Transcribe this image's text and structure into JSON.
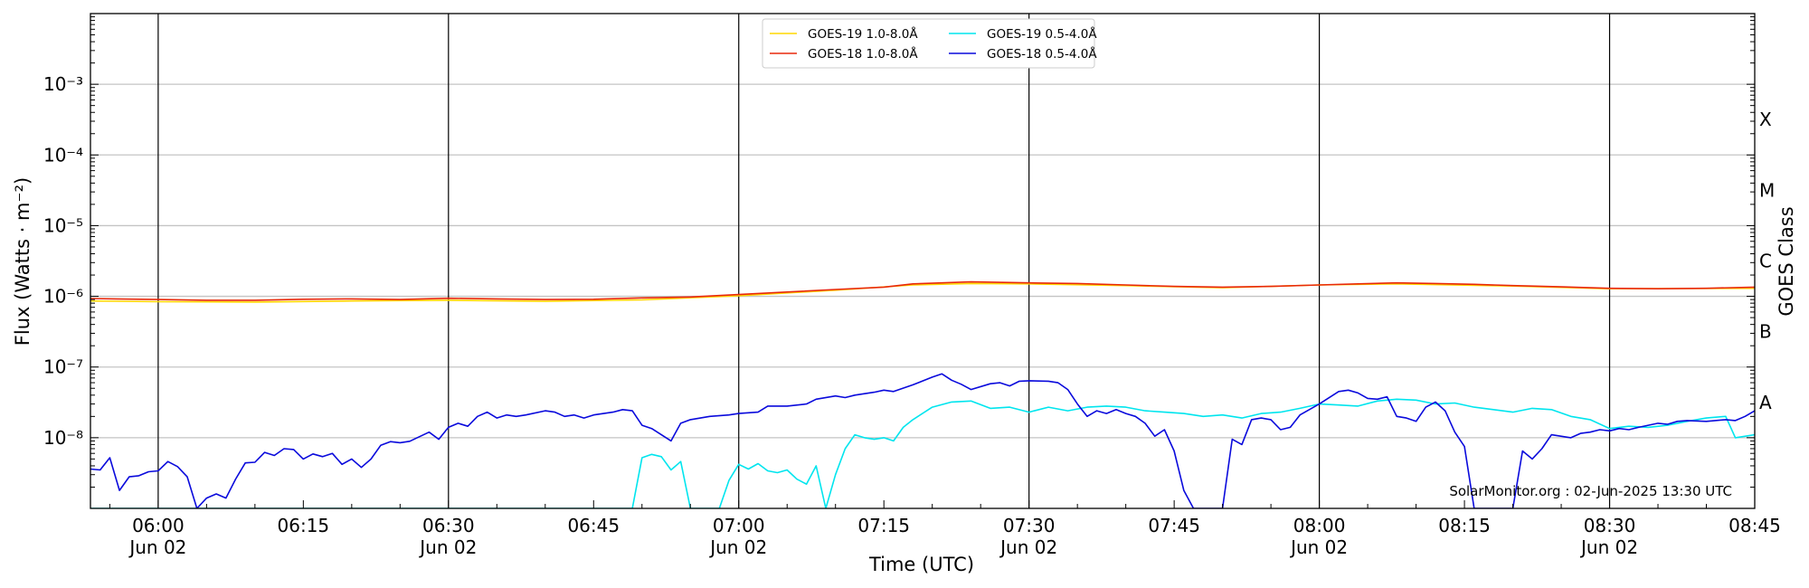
{
  "chart_data": {
    "type": "line",
    "xlabel": "Time (UTC)",
    "ylabel": "Flux (Watts · m⁻²)",
    "y2label": "GOES Class",
    "yscale": "log",
    "xlim": [
      "05:53",
      "08:45"
    ],
    "ylim": [
      1e-09,
      0.01
    ],
    "grid": "horizontal",
    "legend_position": "top-center",
    "credit": "SolarMonitor.org : 02-Jun-2025 13:30 UTC",
    "x_tick_labels": [
      "06:00\nJun 02",
      "06:15",
      "06:30\nJun 02",
      "06:45",
      "07:00\nJun 02",
      "07:15",
      "07:30\nJun 02",
      "07:45",
      "08:00\nJun 02",
      "08:15",
      "08:30\nJun 02",
      "08:45"
    ],
    "y_tick_labels": [
      "10⁻⁸",
      "10⁻⁷",
      "10⁻⁶",
      "10⁻⁵",
      "10⁻⁴",
      "10⁻³"
    ],
    "goes_classes": [
      "A",
      "B",
      "C",
      "M",
      "X"
    ],
    "series": [
      {
        "name": "GOES-19 1.0-8.0Å",
        "color": "#ffd700",
        "points": [
          [
            "05:53",
            8.6e-07
          ],
          [
            "06:00",
            8.4e-07
          ],
          [
            "06:10",
            8.3e-07
          ],
          [
            "06:20",
            8.6e-07
          ],
          [
            "06:30",
            8.8e-07
          ],
          [
            "06:40",
            8.5e-07
          ],
          [
            "06:50",
            8.9e-07
          ],
          [
            "07:00",
            1.02e-06
          ],
          [
            "07:10",
            1.22e-06
          ],
          [
            "07:18",
            1.45e-06
          ],
          [
            "07:24",
            1.52e-06
          ],
          [
            "07:30",
            1.5e-06
          ],
          [
            "07:40",
            1.42e-06
          ],
          [
            "07:50",
            1.32e-06
          ],
          [
            "08:00",
            1.45e-06
          ],
          [
            "08:08",
            1.5e-06
          ],
          [
            "08:20",
            1.4e-06
          ],
          [
            "08:30",
            1.28e-06
          ],
          [
            "08:45",
            1.3e-06
          ]
        ]
      },
      {
        "name": "GOES-18 1.0-8.0Å",
        "color": "#e8290b",
        "points": [
          [
            "05:53",
            9.3e-07
          ],
          [
            "06:00",
            9e-07
          ],
          [
            "06:05",
            8.8e-07
          ],
          [
            "06:10",
            8.8e-07
          ],
          [
            "06:15",
            9.1e-07
          ],
          [
            "06:20",
            9.2e-07
          ],
          [
            "06:25",
            9e-07
          ],
          [
            "06:30",
            9.4e-07
          ],
          [
            "06:35",
            9.2e-07
          ],
          [
            "06:40",
            9e-07
          ],
          [
            "06:45",
            9.1e-07
          ],
          [
            "06:50",
            9.5e-07
          ],
          [
            "06:55",
            9.8e-07
          ],
          [
            "07:00",
            1.06e-06
          ],
          [
            "07:05",
            1.15e-06
          ],
          [
            "07:10",
            1.25e-06
          ],
          [
            "07:15",
            1.35e-06
          ],
          [
            "07:18",
            1.5e-06
          ],
          [
            "07:21",
            1.55e-06
          ],
          [
            "07:24",
            1.6e-06
          ],
          [
            "07:30",
            1.55e-06
          ],
          [
            "07:35",
            1.52e-06
          ],
          [
            "07:40",
            1.45e-06
          ],
          [
            "07:45",
            1.38e-06
          ],
          [
            "07:50",
            1.35e-06
          ],
          [
            "07:55",
            1.38e-06
          ],
          [
            "08:00",
            1.45e-06
          ],
          [
            "08:04",
            1.5e-06
          ],
          [
            "08:08",
            1.55e-06
          ],
          [
            "08:12",
            1.52e-06
          ],
          [
            "08:16",
            1.48e-06
          ],
          [
            "08:20",
            1.42e-06
          ],
          [
            "08:25",
            1.36e-06
          ],
          [
            "08:30",
            1.3e-06
          ],
          [
            "08:35",
            1.28e-06
          ],
          [
            "08:40",
            1.3e-06
          ],
          [
            "08:45",
            1.35e-06
          ]
        ]
      },
      {
        "name": "GOES-19 0.5-4.0Å",
        "color": "#00e5ee",
        "points": [
          [
            "05:53",
            1e-09
          ],
          [
            "06:49",
            1e-09
          ],
          [
            "06:50",
            5.2e-09
          ],
          [
            "06:51",
            5.8e-09
          ],
          [
            "06:52",
            5.4e-09
          ],
          [
            "06:53",
            3.5e-09
          ],
          [
            "06:54",
            4.6e-09
          ],
          [
            "06:55",
            1e-09
          ],
          [
            "06:58",
            1e-09
          ],
          [
            "06:59",
            2.5e-09
          ],
          [
            "07:00",
            4.2e-09
          ],
          [
            "07:01",
            3.6e-09
          ],
          [
            "07:02",
            4.3e-09
          ],
          [
            "07:03",
            3.4e-09
          ],
          [
            "07:04",
            3.2e-09
          ],
          [
            "07:05",
            3.5e-09
          ],
          [
            "07:06",
            2.6e-09
          ],
          [
            "07:07",
            2.2e-09
          ],
          [
            "07:08",
            4e-09
          ],
          [
            "07:09",
            1e-09
          ],
          [
            "07:10",
            3e-09
          ],
          [
            "07:11",
            7e-09
          ],
          [
            "07:12",
            1.1e-08
          ],
          [
            "07:13",
            1e-08
          ],
          [
            "07:14",
            9.5e-09
          ],
          [
            "07:15",
            1e-08
          ],
          [
            "07:16",
            9e-09
          ],
          [
            "07:17",
            1.4e-08
          ],
          [
            "07:18",
            1.8e-08
          ],
          [
            "07:20",
            2.7e-08
          ],
          [
            "07:22",
            3.2e-08
          ],
          [
            "07:24",
            3.3e-08
          ],
          [
            "07:26",
            2.6e-08
          ],
          [
            "07:28",
            2.7e-08
          ],
          [
            "07:30",
            2.3e-08
          ],
          [
            "07:32",
            2.7e-08
          ],
          [
            "07:34",
            2.4e-08
          ],
          [
            "07:36",
            2.7e-08
          ],
          [
            "07:38",
            2.8e-08
          ],
          [
            "07:40",
            2.7e-08
          ],
          [
            "07:42",
            2.4e-08
          ],
          [
            "07:44",
            2.3e-08
          ],
          [
            "07:46",
            2.2e-08
          ],
          [
            "07:48",
            2e-08
          ],
          [
            "07:50",
            2.1e-08
          ],
          [
            "07:52",
            1.9e-08
          ],
          [
            "07:54",
            2.2e-08
          ],
          [
            "07:56",
            2.3e-08
          ],
          [
            "07:58",
            2.6e-08
          ],
          [
            "08:00",
            3e-08
          ],
          [
            "08:02",
            2.9e-08
          ],
          [
            "08:04",
            2.8e-08
          ],
          [
            "08:06",
            3.3e-08
          ],
          [
            "08:08",
            3.5e-08
          ],
          [
            "08:10",
            3.4e-08
          ],
          [
            "08:12",
            3e-08
          ],
          [
            "08:14",
            3.1e-08
          ],
          [
            "08:16",
            2.7e-08
          ],
          [
            "08:18",
            2.5e-08
          ],
          [
            "08:20",
            2.3e-08
          ],
          [
            "08:22",
            2.6e-08
          ],
          [
            "08:24",
            2.5e-08
          ],
          [
            "08:26",
            2e-08
          ],
          [
            "08:28",
            1.8e-08
          ],
          [
            "08:30",
            1.35e-08
          ],
          [
            "08:32",
            1.45e-08
          ],
          [
            "08:34",
            1.4e-08
          ],
          [
            "08:36",
            1.5e-08
          ],
          [
            "08:38",
            1.7e-08
          ],
          [
            "08:40",
            1.9e-08
          ],
          [
            "08:42",
            2e-08
          ],
          [
            "08:43",
            1e-08
          ],
          [
            "08:45",
            1.1e-08
          ]
        ]
      },
      {
        "name": "GOES-18 0.5-4.0Å",
        "color": "#0a0adc",
        "points": [
          [
            "05:53",
            3.6e-09
          ],
          [
            "05:54",
            3.5e-09
          ],
          [
            "05:55",
            5.2e-09
          ],
          [
            "05:56",
            1.8e-09
          ],
          [
            "05:57",
            2.8e-09
          ],
          [
            "05:58",
            2.9e-09
          ],
          [
            "05:59",
            3.3e-09
          ],
          [
            "06:00",
            3.4e-09
          ],
          [
            "06:01",
            4.6e-09
          ],
          [
            "06:02",
            3.9e-09
          ],
          [
            "06:03",
            2.8e-09
          ],
          [
            "06:04",
            1e-09
          ],
          [
            "06:05",
            1.4e-09
          ],
          [
            "06:06",
            1.6e-09
          ],
          [
            "06:07",
            1.4e-09
          ],
          [
            "06:08",
            2.6e-09
          ],
          [
            "06:09",
            4.4e-09
          ],
          [
            "06:10",
            4.5e-09
          ],
          [
            "06:11",
            6.2e-09
          ],
          [
            "06:12",
            5.6e-09
          ],
          [
            "06:13",
            7e-09
          ],
          [
            "06:14",
            6.8e-09
          ],
          [
            "06:15",
            5e-09
          ],
          [
            "06:16",
            5.9e-09
          ],
          [
            "06:17",
            5.4e-09
          ],
          [
            "06:18",
            6e-09
          ],
          [
            "06:19",
            4.2e-09
          ],
          [
            "06:20",
            5e-09
          ],
          [
            "06:21",
            3.8e-09
          ],
          [
            "06:22",
            5e-09
          ],
          [
            "06:23",
            7.8e-09
          ],
          [
            "06:24",
            8.8e-09
          ],
          [
            "06:25",
            8.5e-09
          ],
          [
            "06:26",
            8.9e-09
          ],
          [
            "06:28",
            1.2e-08
          ],
          [
            "06:29",
            9.5e-09
          ],
          [
            "06:30",
            1.4e-08
          ],
          [
            "06:31",
            1.6e-08
          ],
          [
            "06:32",
            1.45e-08
          ],
          [
            "06:33",
            2e-08
          ],
          [
            "06:34",
            2.3e-08
          ],
          [
            "06:35",
            1.9e-08
          ],
          [
            "06:36",
            2.1e-08
          ],
          [
            "06:37",
            2e-08
          ],
          [
            "06:38",
            2.1e-08
          ],
          [
            "06:40",
            2.4e-08
          ],
          [
            "06:41",
            2.3e-08
          ],
          [
            "06:42",
            2e-08
          ],
          [
            "06:43",
            2.1e-08
          ],
          [
            "06:44",
            1.9e-08
          ],
          [
            "06:45",
            2.1e-08
          ],
          [
            "06:47",
            2.3e-08
          ],
          [
            "06:48",
            2.5e-08
          ],
          [
            "06:49",
            2.4e-08
          ],
          [
            "06:50",
            1.5e-08
          ],
          [
            "06:51",
            1.35e-08
          ],
          [
            "06:52",
            1.1e-08
          ],
          [
            "06:53",
            9e-09
          ],
          [
            "06:54",
            1.6e-08
          ],
          [
            "06:55",
            1.8e-08
          ],
          [
            "06:57",
            2e-08
          ],
          [
            "06:59",
            2.1e-08
          ],
          [
            "07:00",
            2.2e-08
          ],
          [
            "07:02",
            2.3e-08
          ],
          [
            "07:03",
            2.8e-08
          ],
          [
            "07:05",
            2.8e-08
          ],
          [
            "07:07",
            3e-08
          ],
          [
            "07:08",
            3.5e-08
          ],
          [
            "07:10",
            3.9e-08
          ],
          [
            "07:11",
            3.7e-08
          ],
          [
            "07:12",
            4e-08
          ],
          [
            "07:14",
            4.4e-08
          ],
          [
            "07:15",
            4.7e-08
          ],
          [
            "07:16",
            4.5e-08
          ],
          [
            "07:18",
            5.6e-08
          ],
          [
            "07:20",
            7.2e-08
          ],
          [
            "07:21",
            8e-08
          ],
          [
            "07:22",
            6.5e-08
          ],
          [
            "07:23",
            5.7e-08
          ],
          [
            "07:24",
            4.8e-08
          ],
          [
            "07:26",
            5.8e-08
          ],
          [
            "07:27",
            6e-08
          ],
          [
            "07:28",
            5.4e-08
          ],
          [
            "07:29",
            6.3e-08
          ],
          [
            "07:30",
            6.4e-08
          ],
          [
            "07:32",
            6.3e-08
          ],
          [
            "07:33",
            6e-08
          ],
          [
            "07:34",
            4.8e-08
          ],
          [
            "07:35",
            3e-08
          ],
          [
            "07:36",
            2e-08
          ],
          [
            "07:37",
            2.4e-08
          ],
          [
            "07:38",
            2.2e-08
          ],
          [
            "07:39",
            2.5e-08
          ],
          [
            "07:40",
            2.2e-08
          ],
          [
            "07:41",
            2e-08
          ],
          [
            "07:42",
            1.6e-08
          ],
          [
            "07:43",
            1.05e-08
          ],
          [
            "07:44",
            1.3e-08
          ],
          [
            "07:45",
            6.5e-09
          ],
          [
            "07:46",
            1.8e-09
          ],
          [
            "07:47",
            1e-09
          ],
          [
            "07:50",
            1e-09
          ],
          [
            "07:51",
            9.5e-09
          ],
          [
            "07:52",
            8e-09
          ],
          [
            "07:53",
            1.8e-08
          ],
          [
            "07:54",
            1.9e-08
          ],
          [
            "07:55",
            1.8e-08
          ],
          [
            "07:56",
            1.3e-08
          ],
          [
            "07:57",
            1.4e-08
          ],
          [
            "07:58",
            2.1e-08
          ],
          [
            "08:00",
            3e-08
          ],
          [
            "08:02",
            4.5e-08
          ],
          [
            "08:03",
            4.7e-08
          ],
          [
            "08:04",
            4.3e-08
          ],
          [
            "08:05",
            3.6e-08
          ],
          [
            "08:06",
            3.5e-08
          ],
          [
            "08:07",
            3.8e-08
          ],
          [
            "08:08",
            2e-08
          ],
          [
            "08:09",
            1.9e-08
          ],
          [
            "08:10",
            1.7e-08
          ],
          [
            "08:11",
            2.7e-08
          ],
          [
            "08:12",
            3.2e-08
          ],
          [
            "08:13",
            2.4e-08
          ],
          [
            "08:14",
            1.2e-08
          ],
          [
            "08:15",
            7.5e-09
          ],
          [
            "08:16",
            1e-09
          ],
          [
            "08:20",
            1e-09
          ],
          [
            "08:21",
            6.5e-09
          ],
          [
            "08:22",
            5e-09
          ],
          [
            "08:23",
            7e-09
          ],
          [
            "08:24",
            1.1e-08
          ],
          [
            "08:26",
            1e-08
          ],
          [
            "08:27",
            1.15e-08
          ],
          [
            "08:28",
            1.2e-08
          ],
          [
            "08:29",
            1.3e-08
          ],
          [
            "08:30",
            1.25e-08
          ],
          [
            "08:31",
            1.35e-08
          ],
          [
            "08:32",
            1.3e-08
          ],
          [
            "08:33",
            1.4e-08
          ],
          [
            "08:35",
            1.6e-08
          ],
          [
            "08:36",
            1.55e-08
          ],
          [
            "08:37",
            1.7e-08
          ],
          [
            "08:38",
            1.75e-08
          ],
          [
            "08:40",
            1.7e-08
          ],
          [
            "08:42",
            1.8e-08
          ],
          [
            "08:43",
            1.75e-08
          ],
          [
            "08:44",
            2e-08
          ],
          [
            "08:45",
            2.4e-08
          ]
        ]
      }
    ]
  }
}
